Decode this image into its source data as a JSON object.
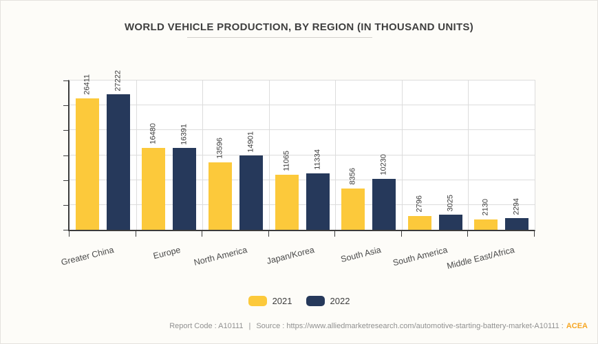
{
  "title": "WORLD VEHICLE PRODUCTION, BY REGION (IN THOUSAND UNITS)",
  "chart_data": {
    "type": "bar",
    "title": "WORLD VEHICLE PRODUCTION, BY REGION (IN THOUSAND UNITS)",
    "categories": [
      "Greater China",
      "Europe",
      "North America",
      "Japan/Korea",
      "South Asia",
      "South America",
      "Middle East/Africa"
    ],
    "series": [
      {
        "name": "2021",
        "color": "#FCC93B",
        "values": [
          26411,
          16480,
          13596,
          11065,
          8356,
          2796,
          2130
        ]
      },
      {
        "name": "2022",
        "color": "#26395B",
        "values": [
          27222,
          16391,
          14901,
          11334,
          10230,
          3025,
          2294
        ]
      }
    ],
    "xlabel": "",
    "ylabel": "",
    "ylim": [
      0,
      30000
    ],
    "y_gridline_step": 5000,
    "grid": true,
    "legend_position": "bottom",
    "value_labels": "rotated-vertical-above-bars"
  },
  "footer": {
    "report_code": "Report Code : A10111",
    "divider": "|",
    "source": "Source : https://www.alliedmarketresearch.com/automotive-starting-battery-market-A10111 :",
    "attribution": "ACEA"
  },
  "colors": {
    "accent_orange": "#F6A623",
    "series_2021": "#FCC93B",
    "series_2022": "#26395B",
    "page_background": "#FDFCF8",
    "plot_background": "#FFFFFF",
    "gridline": "#DCDCDC",
    "axis": "#3B3B3B"
  }
}
